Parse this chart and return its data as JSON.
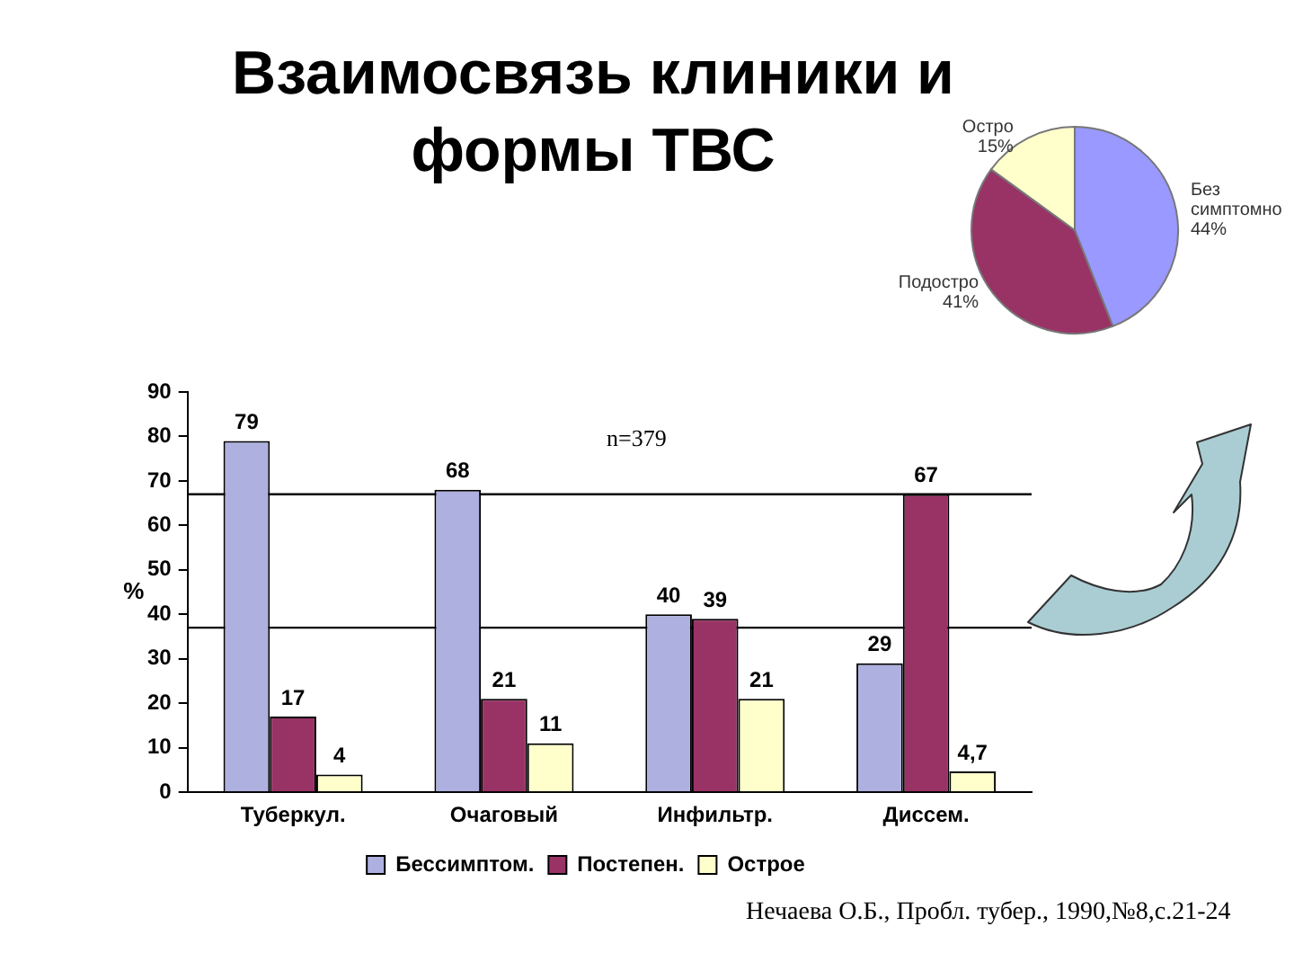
{
  "chart_data": [
    {
      "type": "bar",
      "title": "Взаимосвязь клиники и формы ТВС",
      "ylabel": "%",
      "categories": [
        "Туберкул.",
        "Очаговый",
        "Инфильтр.",
        "Диссем."
      ],
      "series": [
        {
          "name": "Бессимптом.",
          "color": "#aeb0e0",
          "values": [
            79,
            68,
            40,
            29
          ],
          "value_labels": [
            "79",
            "68",
            "40",
            "29"
          ]
        },
        {
          "name": "Постепен.",
          "color": "#993366",
          "values": [
            17,
            21,
            39,
            67
          ],
          "value_labels": [
            "17",
            "21",
            "39",
            "67"
          ]
        },
        {
          "name": "Острое",
          "color": "#ffffcc",
          "values": [
            4,
            11,
            21,
            4.7
          ],
          "value_labels": [
            "4",
            "11",
            "21",
            "4,7"
          ]
        }
      ],
      "ylim": [
        0,
        90
      ],
      "yticks": [
        0,
        10,
        20,
        30,
        40,
        50,
        60,
        70,
        80,
        90
      ],
      "legend": "bottom",
      "ref_lines": [
        {
          "axis": "y",
          "value": 67,
          "color": "#000000"
        },
        {
          "axis": "y",
          "value": 37,
          "color": "#000000"
        }
      ],
      "annotations": [
        "n=379",
        "Нечаева О.Б., Пробл. тубер., 1990,№8,с.21-24"
      ]
    },
    {
      "type": "pie",
      "categories": [
        "Без симптомно",
        "Подостро",
        "Остро"
      ],
      "values": [
        44,
        41,
        15
      ],
      "colors": [
        "#9999ff",
        "#993366",
        "#ffffcc"
      ],
      "value_labels": [
        "44%",
        "41%",
        "15%"
      ]
    }
  ]
}
